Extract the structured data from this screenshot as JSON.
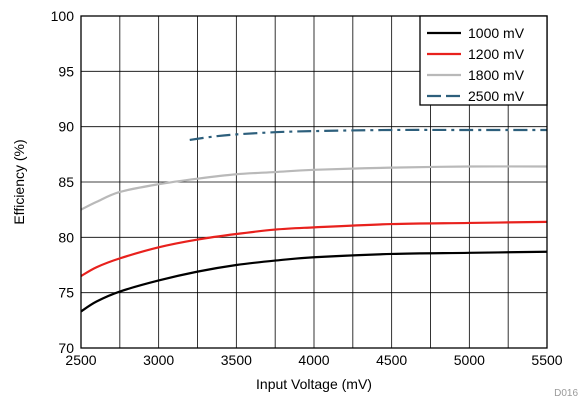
{
  "chart_data": {
    "type": "line",
    "title": "",
    "xlabel": "Input Voltage  (mV)",
    "ylabel": "Efficiency (%)",
    "xlim": [
      2500,
      5500
    ],
    "ylim": [
      70,
      100
    ],
    "x_ticks": [
      2500,
      3000,
      3500,
      4000,
      4500,
      5000,
      5500
    ],
    "y_ticks": [
      70,
      75,
      80,
      85,
      90,
      95,
      100
    ],
    "grid": true,
    "legend_position": "top-right",
    "series": [
      {
        "name": "1000 mV",
        "color": "#000000",
        "dash": "solid",
        "x": [
          2500,
          2600,
          2750,
          3000,
          3250,
          3500,
          3750,
          4000,
          4500,
          5000,
          5500
        ],
        "y": [
          73.3,
          74.2,
          75.1,
          76.1,
          76.9,
          77.5,
          77.9,
          78.2,
          78.5,
          78.6,
          78.7
        ]
      },
      {
        "name": "1200 mV",
        "color": "#e8211d",
        "dash": "solid",
        "x": [
          2500,
          2600,
          2750,
          3000,
          3250,
          3500,
          3750,
          4000,
          4500,
          5000,
          5500
        ],
        "y": [
          76.5,
          77.3,
          78.1,
          79.1,
          79.8,
          80.3,
          80.7,
          80.9,
          81.2,
          81.3,
          81.4
        ]
      },
      {
        "name": "1800 mV",
        "color": "#b9b9b9",
        "dash": "solid",
        "x": [
          2500,
          2600,
          2750,
          3000,
          3250,
          3500,
          3750,
          4000,
          4500,
          5000,
          5500
        ],
        "y": [
          82.5,
          83.2,
          84.1,
          84.8,
          85.3,
          85.7,
          85.9,
          86.1,
          86.3,
          86.4,
          86.4
        ]
      },
      {
        "name": "2500 mV",
        "color": "#2d5f7c",
        "dash": "dashdot",
        "x": [
          3200,
          3350,
          3500,
          3750,
          4000,
          4500,
          5000,
          5500
        ],
        "y": [
          88.8,
          89.1,
          89.3,
          89.5,
          89.6,
          89.7,
          89.7,
          89.7
        ]
      }
    ]
  },
  "figure_code": "D016"
}
